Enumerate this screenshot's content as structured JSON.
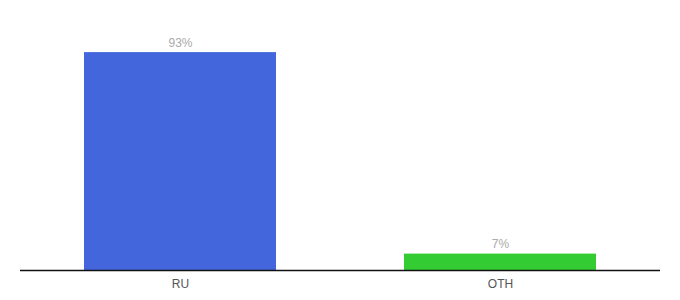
{
  "chart_data": {
    "type": "bar",
    "categories": [
      "RU",
      "OTH"
    ],
    "values": [
      93,
      7
    ],
    "value_labels": [
      "93%",
      "7%"
    ],
    "colors": [
      "#4466dd",
      "#33cc33"
    ],
    "ylim": [
      0,
      105
    ],
    "data_labels": true,
    "tick_labels": "x"
  }
}
